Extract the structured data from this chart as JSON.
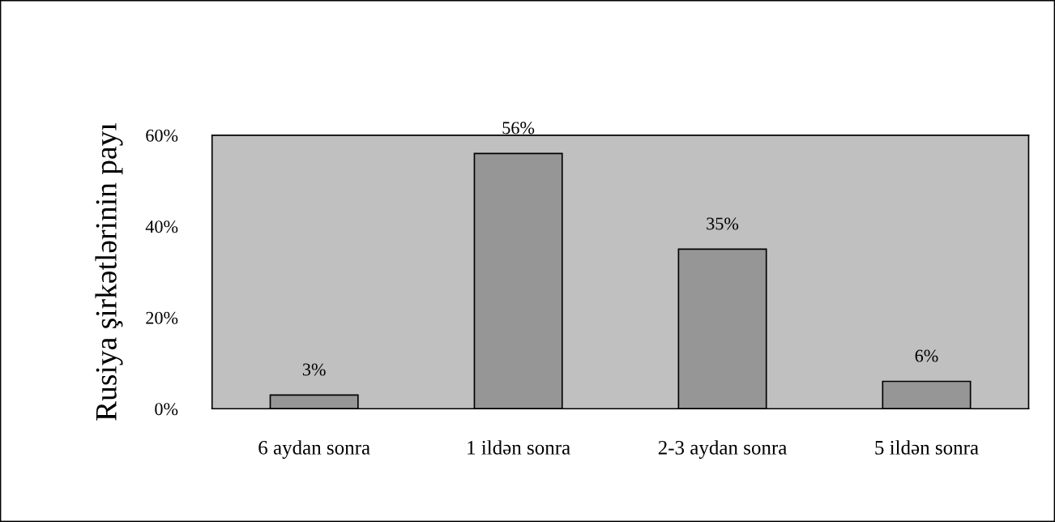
{
  "chart_data": {
    "type": "bar",
    "ylabel": "Rusiya şirkətlərinin payı",
    "categories": [
      "6 aydan sonra",
      "1 ildən sonra",
      "2-3 aydan sonra",
      "5 ildən sonra"
    ],
    "values": [
      3,
      56,
      35,
      6
    ],
    "color": "#969696",
    "ylim": [
      0,
      60
    ],
    "yticks": [
      {
        "value": 0,
        "label": "0%"
      },
      {
        "value": 20,
        "label": "20%"
      },
      {
        "value": 40,
        "label": "40%"
      },
      {
        "value": 60,
        "label": "60%"
      }
    ],
    "value_labels": [
      "3%",
      "56%",
      "35%",
      "6%"
    ],
    "grid": false,
    "legend": false
  }
}
